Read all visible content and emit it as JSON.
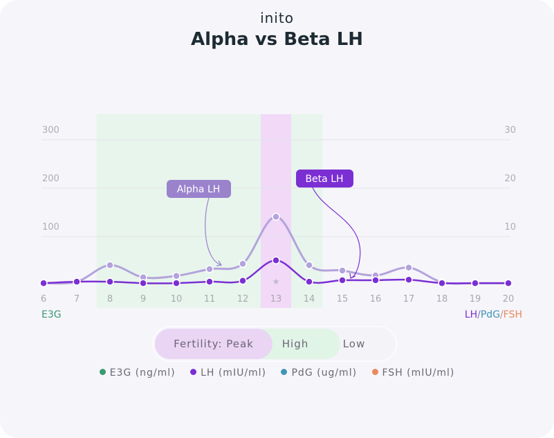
{
  "logo": "inito",
  "chart_data": {
    "type": "line",
    "title": "Alpha vs Beta LH",
    "x": [
      6,
      7,
      8,
      9,
      10,
      11,
      12,
      13,
      14,
      15,
      16,
      17,
      18,
      19,
      20
    ],
    "left_axis": {
      "label": "E3G",
      "ticks": [
        100,
        200,
        300
      ],
      "range": [
        0,
        300
      ]
    },
    "right_axis": {
      "label_parts": [
        "LH",
        "/",
        "PdG",
        "/",
        "FSH"
      ],
      "ticks": [
        10,
        20,
        30
      ],
      "range": [
        0,
        30
      ]
    },
    "grid": true,
    "series": [
      {
        "name": "Alpha LH",
        "color": "#b3a3dc",
        "values": [
          0.4,
          0.7,
          4.1,
          1.6,
          1.9,
          3.3,
          4.4,
          14.1,
          4.1,
          3.0,
          2.0,
          3.6,
          0.6,
          0.4,
          0.4
        ]
      },
      {
        "name": "Beta LH",
        "color": "#7b2fd3",
        "values": [
          0.4,
          0.7,
          0.7,
          0.4,
          0.4,
          0.7,
          0.9,
          5.1,
          0.7,
          1.0,
          1.0,
          1.1,
          0.4,
          0.4,
          0.4
        ]
      }
    ],
    "annotations": [
      {
        "text": "Alpha LH",
        "color": "#9a82cc",
        "points_to_day": 11.4
      },
      {
        "text": "Beta LH",
        "color": "#7b2fd3",
        "points_to_day": 15.3
      }
    ],
    "fertility_bands": {
      "high": [
        7.6,
        14.4
      ],
      "peak": [
        12.5,
        13.5
      ],
      "peak_marker_day": 13
    },
    "colors": {
      "high": "#e4f5e9",
      "peak": "#f1d9f7",
      "e3g": "#3a9a6e",
      "lh": "#7b2fd3",
      "pdg": "#3f95b5",
      "fsh": "#e8895c"
    }
  },
  "fertility_toggle": {
    "peak": "Fertility: Peak",
    "high": "High",
    "low": "Low"
  },
  "legend": [
    {
      "label": "E3G (ng/ml)",
      "color": "#3a9a6e"
    },
    {
      "label": "LH (mIU/ml)",
      "color": "#7b2fd3"
    },
    {
      "label": "PdG (ug/ml)",
      "color": "#3f95b5"
    },
    {
      "label": "FSH (mIU/ml)",
      "color": "#e8895c"
    }
  ]
}
